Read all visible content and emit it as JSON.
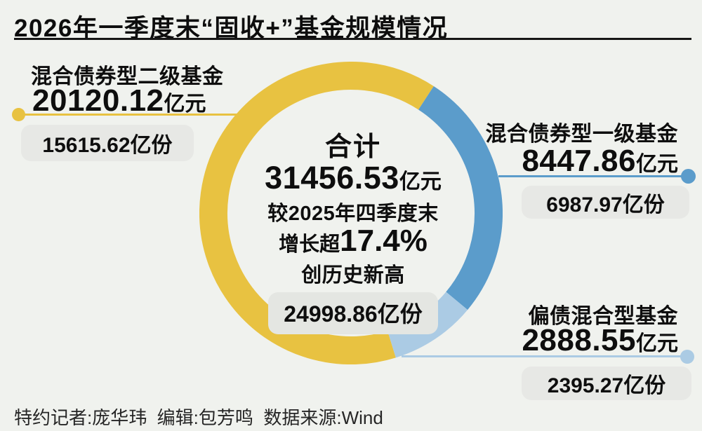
{
  "page": {
    "title": "2026年一季度末“固收+”基金规模情况",
    "credits": "特约记者:庞华玮  编辑:包芳鸣  数据来源:Wind",
    "background_color": "#F0F2EE"
  },
  "chart_data": {
    "type": "pie",
    "subtype": "donut",
    "title": "2026年一季度末“固收+”基金规模情况",
    "unit": "亿元",
    "rotation_deg": 162.8,
    "legend_position": "callouts-around-donut",
    "grid": false,
    "segments": [
      {
        "id": "mixed-bond-secondary",
        "name": "混合债券型二级基金",
        "value": 20120.12,
        "value_label": "20120.12",
        "unit": "亿元",
        "shares_label": "15615.62亿份",
        "color": "#E8C241"
      },
      {
        "id": "mixed-bond-primary",
        "name": "混合债券型一级基金",
        "value": 8447.86,
        "value_label": "8447.86",
        "unit": "亿元",
        "shares_label": "6987.97亿份",
        "color": "#5B9CCB"
      },
      {
        "id": "bond-biased-mixed",
        "name": "偏债混合型基金",
        "value": 2888.55,
        "value_label": "2888.55",
        "unit": "亿元",
        "shares_label": "2395.27亿份",
        "color": "#ABCBE4"
      }
    ],
    "total": {
      "label": "合计",
      "value": 31456.53,
      "value_label": "31456.53",
      "unit": "亿元",
      "note_line1": "较2025年四季度末",
      "growth_prefix": "增长超",
      "growth_value": "17.4%",
      "note_line2": "创历史新高",
      "shares_label": "24998.86亿份"
    },
    "source": "Wind"
  }
}
